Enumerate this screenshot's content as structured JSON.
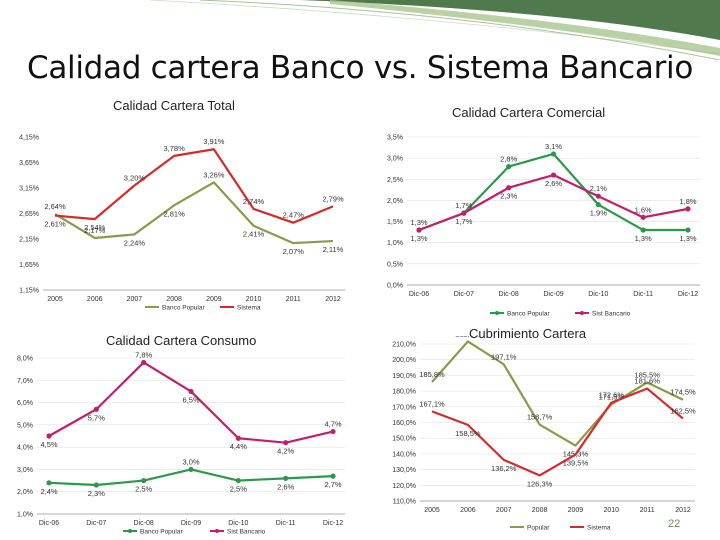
{
  "slide": {
    "title": "Calidad cartera Banco vs. Sistema Bancario",
    "page_number": "22"
  },
  "chart_data": [
    {
      "type": "line",
      "title": "Calidad Cartera Total",
      "categories": [
        "2005",
        "2006",
        "2007",
        "2008",
        "2009",
        "2010",
        "2011",
        "2012"
      ],
      "yticks": [
        "1,15%",
        "1,65%",
        "2,15%",
        "2,65%",
        "3,15%",
        "3,65%",
        "4,15%"
      ],
      "ylim": [
        1.15,
        4.15
      ],
      "series": [
        {
          "name": "Banco Popular",
          "color": "#8a9a4a",
          "values": [
            2.64,
            2.17,
            2.24,
            2.81,
            3.26,
            2.41,
            2.07,
            2.11
          ],
          "labels": [
            "2,64%",
            "2,17%",
            "2,24%",
            "2,81%",
            "3,26%",
            "2,41%",
            "2,07%",
            "2,11%"
          ]
        },
        {
          "name": "Sistema",
          "color": "#d42a2a",
          "values": [
            2.61,
            2.54,
            3.2,
            3.78,
            3.91,
            2.74,
            2.47,
            2.79
          ],
          "labels": [
            "2,61%",
            "2,54%",
            "3,20%",
            "3,78%",
            "3,91%",
            "2,74%",
            "2,47%",
            "2,79%"
          ]
        }
      ]
    },
    {
      "type": "line",
      "title": "Calidad Cartera Comercial",
      "categories": [
        "Dic-06",
        "Dic-07",
        "Dic-08",
        "Dic-09",
        "Dic-10",
        "Dic-11",
        "Dic-12"
      ],
      "yticks": [
        "0,0%",
        "0,5%",
        "1,0%",
        "1,5%",
        "2,0%",
        "2,5%",
        "3,0%",
        "3,5%"
      ],
      "ylim": [
        0,
        3.5
      ],
      "series": [
        {
          "name": "Banco Popular",
          "color": "#2a9a4a",
          "values": [
            1.3,
            1.7,
            2.8,
            3.1,
            1.9,
            1.3,
            1.3
          ],
          "labels": [
            "1,3%",
            "1,7%",
            "2,8%",
            "3,1%",
            "1,9%",
            "1,3%",
            "1,3%"
          ]
        },
        {
          "name": "Sist Bancario",
          "color": "#c0206a",
          "values": [
            1.3,
            1.7,
            2.3,
            2.6,
            2.1,
            1.6,
            1.8
          ],
          "labels": [
            "1,3%",
            "1,7%",
            "2,3%",
            "2,6%",
            "2,1%",
            "1,6%",
            "1,8%"
          ]
        }
      ]
    },
    {
      "type": "line",
      "title": "Calidad Cartera Consumo",
      "categories": [
        "Dic-06",
        "Dic-07",
        "Dic-08",
        "Dic-09",
        "Dic-10",
        "Dic-11",
        "Dic-12"
      ],
      "yticks": [
        "1,0%",
        "2,0%",
        "3,0%",
        "4,0%",
        "5,0%",
        "6,0%",
        "7,0%",
        "8,0%"
      ],
      "ylim": [
        1.0,
        8.0
      ],
      "series": [
        {
          "name": "Banco Popular",
          "color": "#2a9a4a",
          "values": [
            2.4,
            2.3,
            2.5,
            3.0,
            2.5,
            2.6,
            2.7
          ],
          "labels": [
            "2,4%",
            "2,3%",
            "2,5%",
            "3,0%",
            "2,5%",
            "2,6%",
            "2,7%"
          ]
        },
        {
          "name": "Sist Bancario",
          "color": "#c0206a",
          "values": [
            4.5,
            5.7,
            7.8,
            6.5,
            4.4,
            4.2,
            4.7
          ],
          "labels": [
            "4,5%",
            "5,7%",
            "7,8%",
            "6,5%",
            "4,4%",
            "4,2%",
            "4,7%"
          ]
        }
      ]
    },
    {
      "type": "line",
      "title": "Cubrimiento Cartera",
      "categories": [
        "2005",
        "2006",
        "2007",
        "2008",
        "2009",
        "2010",
        "2011",
        "2012"
      ],
      "yticks": [
        "110,0%",
        "120,0%",
        "130,0%",
        "140,0%",
        "150,0%",
        "160,0%",
        "170,0%",
        "180,0%",
        "190,0%",
        "200,0%",
        "210,0%"
      ],
      "ylim": [
        110,
        210
      ],
      "series": [
        {
          "name": "Popular",
          "color": "#8a9a4a",
          "values": [
            185.8,
            211.6,
            197.1,
            158.7,
            145.3,
            171.5,
            185.5,
            174.5
          ],
          "labels": [
            "185,8%",
            "211,6%",
            "197,1%",
            "158,7%",
            "145,3%",
            "171,5%",
            "185,5%",
            "174,5%"
          ]
        },
        {
          "name": "Sistema",
          "color": "#d42a2a",
          "values": [
            167.1,
            158.5,
            136.2,
            126.3,
            139.5,
            172.6,
            181.6,
            162.5
          ],
          "labels": [
            "167,1%",
            "158,5%",
            "136,2%",
            "126,3%",
            "139,5%",
            "172,6%",
            "181,6%",
            "162,5%"
          ]
        }
      ]
    }
  ]
}
